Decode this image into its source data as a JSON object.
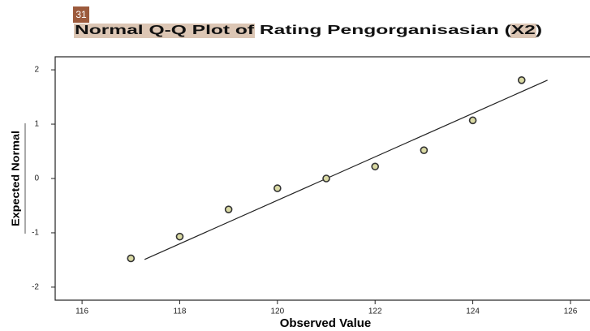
{
  "badge": "31",
  "chart_data": {
    "type": "scatter",
    "title": "Normal Q-Q Plot of Rating Pengorganisasian (X2)",
    "xlabel": "Observed Value",
    "ylabel": "Expected Normal",
    "x": [
      117,
      118,
      119,
      120,
      121,
      122,
      123,
      124,
      125
    ],
    "values": [
      -1.47,
      -1.07,
      -0.57,
      -0.18,
      0,
      0.22,
      0.52,
      1.07,
      1.81
    ],
    "color": "#d9d9a3",
    "reference_line": {
      "x": [
        117.28,
        125.53
      ],
      "y": [
        -1.49,
        1.81
      ]
    },
    "xlim": [
      115.45,
      126.4
    ],
    "ylim": [
      -2.24,
      2.24
    ],
    "xticks": [
      116,
      118,
      120,
      122,
      124,
      126
    ],
    "yticks": [
      -2,
      -1,
      0,
      1,
      2
    ]
  }
}
